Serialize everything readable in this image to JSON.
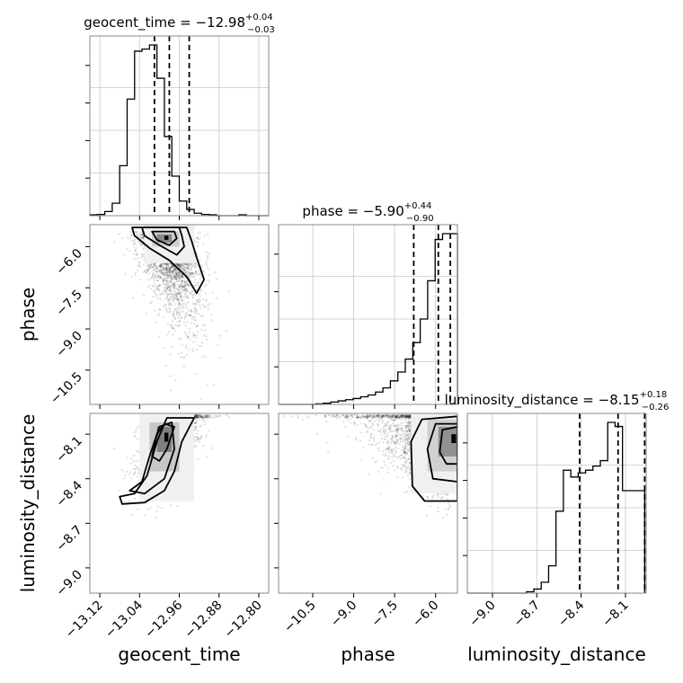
{
  "chart_data": {
    "type": "corner",
    "parameters": [
      "geocent_time",
      "phase",
      "luminosity_distance"
    ],
    "titles": [
      {
        "param": "geocent_time",
        "median": "−12.98",
        "plus": "+0.04",
        "minus": "−0.03",
        "prefix": "geocent_time = "
      },
      {
        "param": "phase",
        "median": "−5.90",
        "plus": "+0.44",
        "minus": "−0.90",
        "prefix": "phase = "
      },
      {
        "param": "luminosity_distance",
        "median": "−8.15",
        "plus": "+0.18",
        "minus": "−0.26",
        "prefix": "luminosity_distance = "
      }
    ],
    "axis_labels": {
      "x": [
        "geocent_time",
        "phase",
        "luminosity_distance"
      ],
      "y": [
        "",
        "phase",
        "luminosity_distance"
      ]
    },
    "ranges": {
      "geocent_time": [
        -13.14,
        -12.78
      ],
      "phase": [
        -11.75,
        -5.2
      ],
      "luminosity_distance": [
        -9.17,
        -7.96
      ]
    },
    "ticks": {
      "geocent_time": [
        -13.12,
        -13.04,
        -12.96,
        -12.88,
        -12.8
      ],
      "phase": [
        -10.5,
        -9.0,
        -7.5,
        -6.0
      ],
      "luminosity_distance": [
        -9.0,
        -8.7,
        -8.4,
        -8.1
      ]
    },
    "tick_labels": {
      "geocent_time": [
        "−13.12",
        "−13.04",
        "−12.96",
        "−12.88",
        "−12.80"
      ],
      "phase": [
        "−10.5",
        "−9.0",
        "−7.5",
        "−6.0"
      ],
      "luminosity_distance": [
        "−9.0",
        "−8.7",
        "−8.4",
        "−8.1"
      ]
    },
    "quantiles": {
      "geocent_time": [
        -13.01,
        -12.98,
        -12.94
      ],
      "phase": [
        -6.8,
        -5.9,
        -5.46
      ],
      "luminosity_distance": [
        -8.41,
        -8.15,
        -7.97
      ]
    },
    "histograms": {
      "geocent_time": {
        "edges": [
          -13.14,
          -13.125,
          -13.11,
          -13.095,
          -13.08,
          -13.065,
          -13.05,
          -13.035,
          -13.02,
          -13.005,
          -12.99,
          -12.975,
          -12.96,
          -12.945,
          -12.93,
          -12.915,
          -12.9,
          -12.885,
          -12.87,
          -12.855,
          -12.84,
          -12.825,
          -12.81,
          -12.795,
          -12.78
        ],
        "counts": [
          2,
          3,
          10,
          30,
          120,
          280,
          395,
          400,
          410,
          330,
          190,
          95,
          35,
          15,
          6,
          3,
          2,
          0,
          0,
          0,
          2,
          0,
          0,
          0
        ]
      },
      "phase": {
        "edges": [
          -11.75,
          -11.477,
          -11.204,
          -10.931,
          -10.658,
          -10.385,
          -10.112,
          -9.839,
          -9.566,
          -9.293,
          -9.02,
          -8.747,
          -8.474,
          -8.201,
          -7.928,
          -7.655,
          -7.382,
          -7.109,
          -6.836,
          -6.563,
          -6.29,
          -6.017,
          -5.744,
          -5.471,
          -5.198
        ],
        "counts": [
          0,
          0,
          0,
          0,
          0,
          1,
          2,
          4,
          6,
          8,
          10,
          13,
          16,
          21,
          28,
          40,
          55,
          77,
          105,
          145,
          210,
          280,
          290,
          290
        ]
      },
      "luminosity_distance": {
        "edges": [
          -9.17,
          -9.12,
          -9.07,
          -9.02,
          -8.97,
          -8.92,
          -8.87,
          -8.82,
          -8.77,
          -8.72,
          -8.67,
          -8.62,
          -8.57,
          -8.52,
          -8.47,
          -8.42,
          -8.37,
          -8.32,
          -8.27,
          -8.22,
          -8.17,
          -8.12,
          -8.07,
          -8.02,
          -7.97
        ],
        "counts": [
          0,
          0,
          0,
          0,
          0,
          0,
          0,
          0,
          1,
          3,
          8,
          20,
          60,
          90,
          85,
          88,
          90,
          93,
          97,
          125,
          122,
          75,
          75,
          75
        ]
      }
    },
    "grid": true
  },
  "scatter_seed": 20240611
}
